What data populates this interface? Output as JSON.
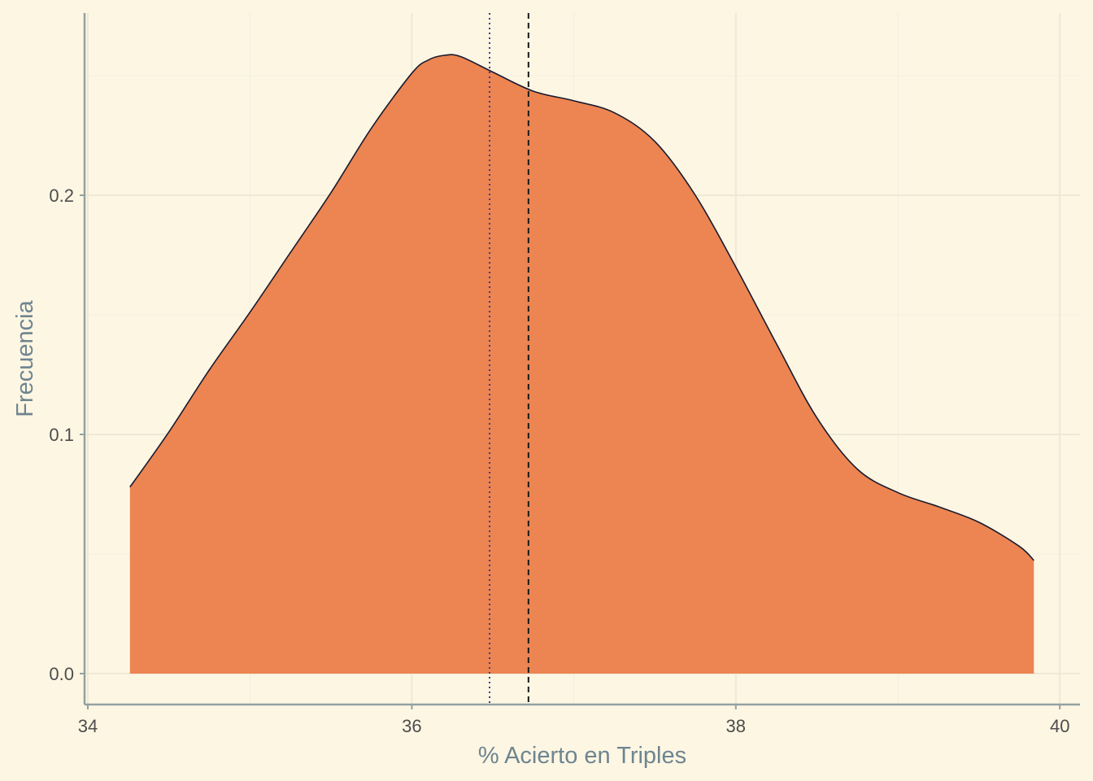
{
  "chart_data": {
    "type": "area",
    "subtype": "density",
    "title": "",
    "xlabel": "% Acierto en Triples",
    "ylabel": "Frecuencia",
    "xlim": [
      34,
      40
    ],
    "ylim": [
      0,
      0.262
    ],
    "xticks": [
      34,
      36,
      38,
      40
    ],
    "xtick_labels": [
      "34",
      "36",
      "38",
      "40"
    ],
    "yticks": [
      0.0,
      0.1,
      0.2
    ],
    "ytick_labels": [
      "0.0",
      "0.1",
      "0.2"
    ],
    "grid": true,
    "fill_color": "#EC8552",
    "line_color": "#1a1a2e",
    "x": [
      34.26,
      34.5,
      34.75,
      35.0,
      35.25,
      35.5,
      35.75,
      36.0,
      36.1,
      36.2,
      36.3,
      36.5,
      36.75,
      37.0,
      37.25,
      37.5,
      37.75,
      38.0,
      38.25,
      38.5,
      38.75,
      39.0,
      39.25,
      39.5,
      39.75,
      39.84
    ],
    "y": [
      0.078,
      0.101,
      0.127,
      0.151,
      0.176,
      0.201,
      0.228,
      0.251,
      0.2565,
      0.2585,
      0.258,
      0.2515,
      0.2435,
      0.2395,
      0.2345,
      0.2225,
      0.2,
      0.17,
      0.138,
      0.107,
      0.0855,
      0.0757,
      0.0698,
      0.0633,
      0.0532,
      0.0473
    ],
    "vlines": [
      {
        "x": 36.48,
        "style": "dotted",
        "color": "#3c3c8c"
      },
      {
        "x": 36.72,
        "style": "dashed",
        "color": "#1a1a1a"
      }
    ]
  }
}
